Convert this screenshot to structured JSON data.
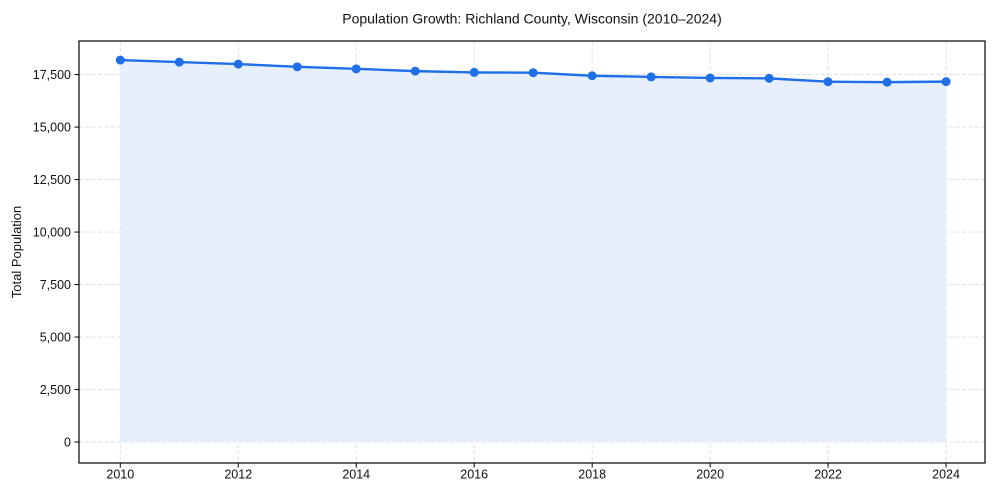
{
  "page": {
    "background_color": "#ffffff"
  },
  "chart": {
    "title": "Population Growth: Richland County, Wisconsin (2010–2024)",
    "ylabel": "Total Population",
    "xlabel": ""
  },
  "chart_data": {
    "type": "line",
    "title": "Population Growth: Richland County, Wisconsin (2010–2024)",
    "xlabel": "",
    "ylabel": "Total Population",
    "x": [
      2010,
      2011,
      2012,
      2013,
      2014,
      2015,
      2016,
      2017,
      2018,
      2019,
      2020,
      2021,
      2022,
      2023,
      2024
    ],
    "series": [
      {
        "name": "Total Population",
        "values": [
          18190,
          18095,
          18000,
          17870,
          17775,
          17665,
          17605,
          17590,
          17445,
          17390,
          17340,
          17320,
          17160,
          17140,
          17165
        ]
      }
    ],
    "x_ticks": [
      2010,
      2012,
      2014,
      2016,
      2018,
      2020,
      2022,
      2024
    ],
    "y_ticks": [
      0,
      2500,
      5000,
      7500,
      10000,
      12500,
      15000,
      17500
    ],
    "xlim": [
      2009.3,
      2024.66
    ],
    "ylim": [
      -1000,
      19100
    ],
    "grid": true,
    "grid_style": "dashed",
    "legend_position": "none",
    "line_color": "#1f6fe8",
    "marker": "circle",
    "marker_color": "#1f6fe8",
    "area_fill": true,
    "fill_color": "#e7effc",
    "grid_color": "#dcdcdc",
    "spine_color": "#000000",
    "text_color": "#111111"
  }
}
